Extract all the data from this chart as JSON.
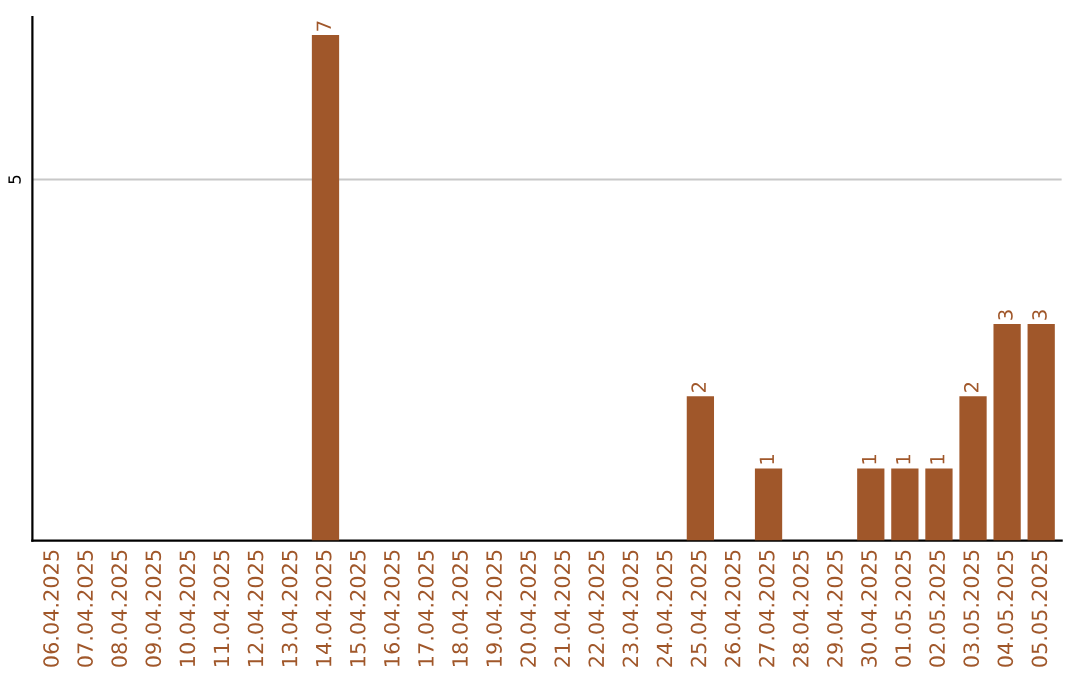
{
  "chart_data": {
    "type": "bar",
    "categories": [
      "06.04.2025",
      "07.04.2025",
      "08.04.2025",
      "09.04.2025",
      "10.04.2025",
      "11.04.2025",
      "12.04.2025",
      "13.04.2025",
      "14.04.2025",
      "15.04.2025",
      "16.04.2025",
      "17.04.2025",
      "18.04.2025",
      "19.04.2025",
      "20.04.2025",
      "21.04.2025",
      "22.04.2025",
      "23.04.2025",
      "24.04.2025",
      "25.04.2025",
      "26.04.2025",
      "27.04.2025",
      "28.04.2025",
      "29.04.2025",
      "30.04.2025",
      "01.05.2025",
      "02.05.2025",
      "03.05.2025",
      "04.05.2025",
      "05.05.2025"
    ],
    "values": [
      0,
      0,
      0,
      0,
      0,
      0,
      0,
      0,
      7,
      0,
      0,
      0,
      0,
      0,
      0,
      0,
      0,
      0,
      0,
      2,
      0,
      1,
      0,
      0,
      1,
      1,
      1,
      2,
      3,
      3
    ],
    "value_labels": [
      null,
      null,
      null,
      null,
      null,
      null,
      null,
      null,
      "7",
      null,
      null,
      null,
      null,
      null,
      null,
      null,
      null,
      null,
      null,
      "2",
      null,
      "1",
      null,
      null,
      "1",
      "1",
      "1",
      "2",
      "3",
      "3"
    ],
    "color": "#a0572a",
    "ylim": [
      0,
      7.25
    ],
    "yticks": [
      5
    ],
    "grid": "y"
  }
}
